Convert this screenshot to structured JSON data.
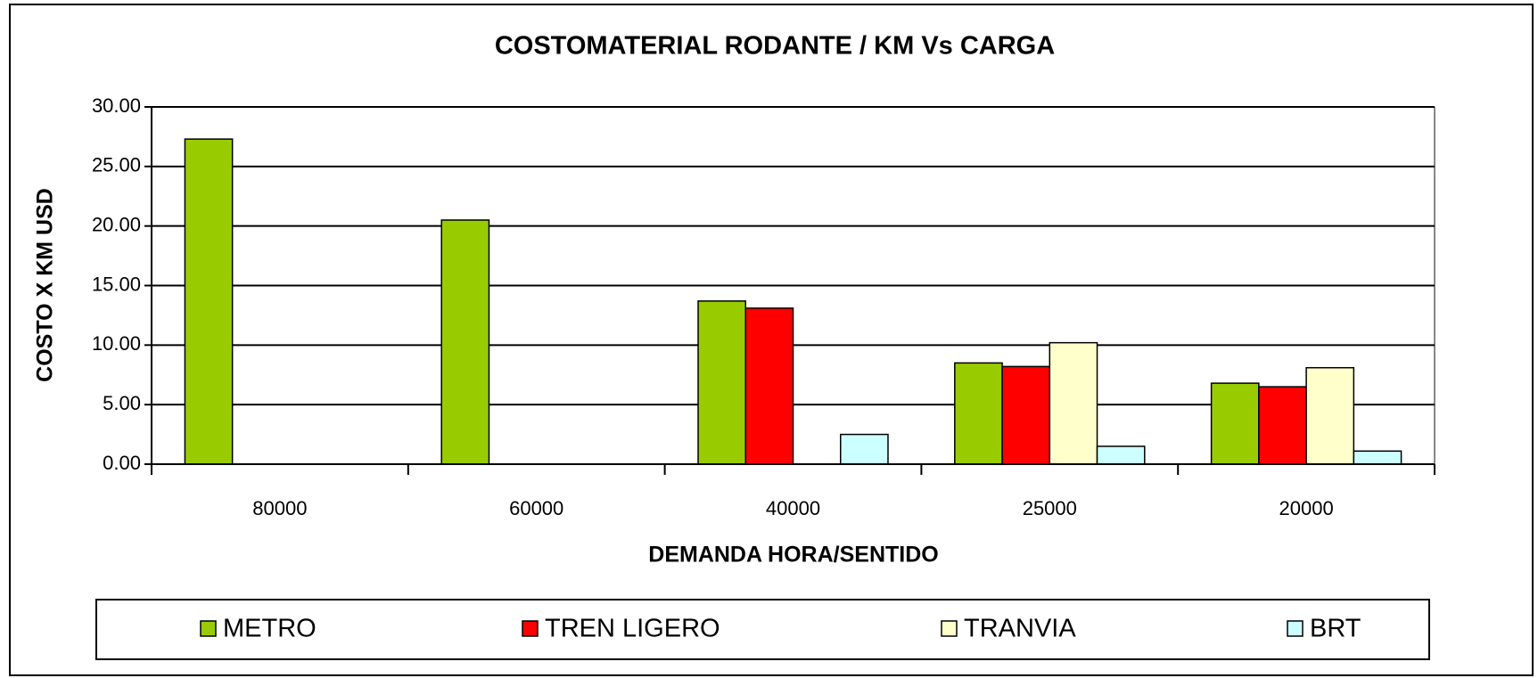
{
  "chart_data": {
    "type": "bar",
    "title": "COSTOMATERIAL RODANTE / KM Vs CARGA",
    "y_label": "COSTO X KM USD",
    "x_label": "DEMANDA HORA/SENTIDO",
    "categories": [
      "80000",
      "60000",
      "40000",
      "25000",
      "20000"
    ],
    "series": [
      {
        "name": "METRO",
        "color": "#99cc00",
        "values": [
          27.3,
          20.5,
          13.7,
          8.5,
          6.8
        ]
      },
      {
        "name": "TREN LIGERO",
        "color": "#ff0000",
        "values": [
          null,
          null,
          13.1,
          8.2,
          6.5
        ]
      },
      {
        "name": "TRANVIA",
        "color": "#ffffcc",
        "values": [
          null,
          null,
          null,
          10.2,
          8.1
        ]
      },
      {
        "name": "BRT",
        "color": "#ccffff",
        "values": [
          null,
          null,
          2.5,
          1.5,
          1.1
        ]
      }
    ],
    "ylim": [
      0,
      30
    ],
    "yticks": [
      {
        "value": 0,
        "label": "0.00"
      },
      {
        "value": 5,
        "label": "5.00"
      },
      {
        "value": 10,
        "label": "10.00"
      },
      {
        "value": 15,
        "label": "15.00"
      },
      {
        "value": 20,
        "label": "20.00"
      },
      {
        "value": 25,
        "label": "25.00"
      },
      {
        "value": 30,
        "label": "30.00"
      }
    ],
    "grid": true,
    "legend": "bottom"
  }
}
